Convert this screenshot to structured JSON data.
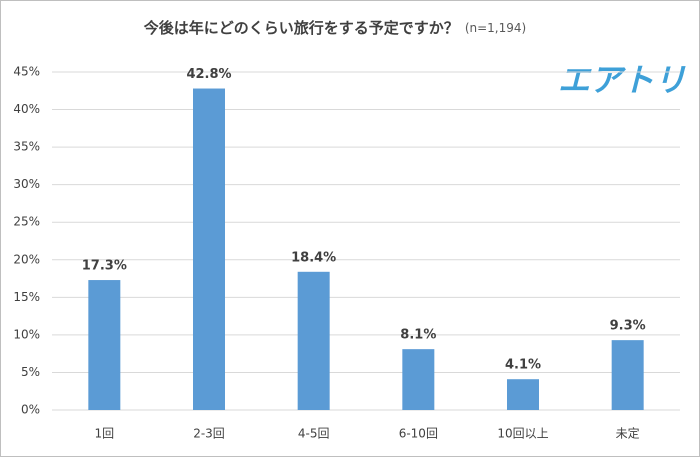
{
  "chart_data": {
    "type": "bar",
    "title": "今後は年にどのくらい旅行をする予定ですか？",
    "subtitle": "(n=1,194)",
    "logo": "エアトリ",
    "categories": [
      "1回",
      "2-3回",
      "4-5回",
      "6-10回",
      "10回以上",
      "未定"
    ],
    "values": [
      17.3,
      42.8,
      18.4,
      8.1,
      4.1,
      9.3
    ],
    "value_labels": [
      "17.3%",
      "42.8%",
      "18.4%",
      "8.1%",
      "4.1%",
      "9.3%"
    ],
    "color": "#5b9bd5",
    "ylim": [
      0,
      45
    ],
    "yticks": [
      {
        "value": 0,
        "label": "0%"
      },
      {
        "value": 5,
        "label": "5%"
      },
      {
        "value": 10,
        "label": "10%"
      },
      {
        "value": 15,
        "label": "15%"
      },
      {
        "value": 20,
        "label": "20%"
      },
      {
        "value": 25,
        "label": "25%"
      },
      {
        "value": 30,
        "label": "30%"
      },
      {
        "value": 35,
        "label": "35%"
      },
      {
        "value": 40,
        "label": "40%"
      },
      {
        "value": 45,
        "label": "45%"
      }
    ],
    "grid": true
  }
}
